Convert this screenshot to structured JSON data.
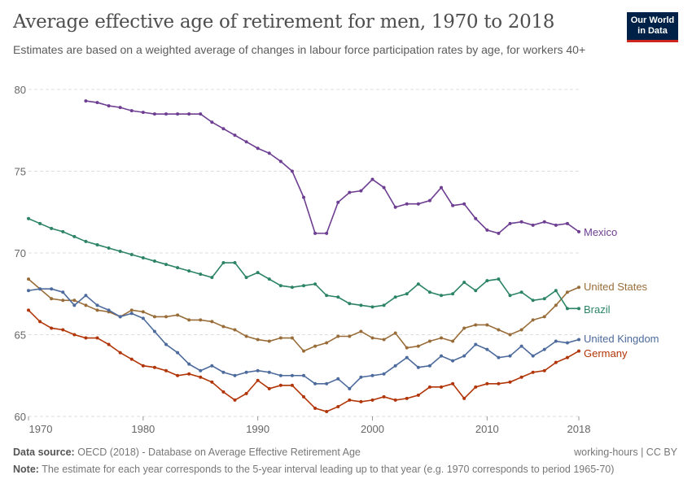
{
  "header": {
    "title": "Average effective age of retirement for men, 1970 to 2018",
    "subtitle": "Estimates are based on a weighted average of changes in labour force participation rates by age, for workers 40+",
    "logo_text": "Our World in Data"
  },
  "footer": {
    "source_label": "Data source:",
    "source_text": "OECD (2018) - Database on Average Effective Retirement Age",
    "license": "working-hours | CC BY",
    "note_label": "Note:",
    "note_text": "The estimate for each year corresponds to the 5-year interval leading up to that year (e.g. 1970 corresponds to period 1965-70)"
  },
  "chart_data": {
    "type": "line",
    "title": "Average effective age of retirement for men, 1970 to 2018",
    "xlim": [
      1970,
      2018
    ],
    "ylim": [
      60,
      80
    ],
    "x_ticks": [
      "1970",
      "1980",
      "1990",
      "2000",
      "2010",
      "2018"
    ],
    "y_ticks": [
      "60",
      "65",
      "70",
      "75",
      "80"
    ],
    "grid": "horizontal dashed",
    "legend": "line-end labels, right",
    "series": [
      {
        "name": "Mexico",
        "color": "#6d3e91",
        "start": 1975,
        "values": [
          79.3,
          79.2,
          79.0,
          78.9,
          78.7,
          78.6,
          78.5,
          78.5,
          78.5,
          78.5,
          78.5,
          78.0,
          77.6,
          77.2,
          76.8,
          76.4,
          76.1,
          75.6,
          75.0,
          73.4,
          71.2,
          71.2,
          73.1,
          73.7,
          73.8,
          74.5,
          74.0,
          72.8,
          73.0,
          73.0,
          73.2,
          74.0,
          72.9,
          73.0,
          72.1,
          71.4,
          71.2,
          71.8,
          71.9,
          71.7,
          71.9,
          71.7,
          71.8,
          71.3
        ]
      },
      {
        "name": "United States",
        "color": "#996d39",
        "start": 1970,
        "values": [
          68.4,
          67.8,
          67.2,
          67.1,
          67.1,
          66.8,
          66.5,
          66.4,
          66.1,
          66.5,
          66.4,
          66.1,
          66.1,
          66.2,
          65.9,
          65.9,
          65.8,
          65.5,
          65.3,
          64.9,
          64.7,
          64.6,
          64.8,
          64.8,
          64.0,
          64.3,
          64.5,
          64.9,
          64.9,
          65.2,
          64.8,
          64.7,
          65.1,
          64.2,
          64.3,
          64.6,
          64.8,
          64.6,
          65.4,
          65.6,
          65.6,
          65.3,
          65.0,
          65.3,
          65.9,
          66.1,
          66.8,
          67.6,
          67.9
        ]
      },
      {
        "name": "Brazil",
        "color": "#2c8465",
        "start": 1970,
        "values": [
          72.1,
          71.8,
          71.5,
          71.3,
          71.0,
          70.7,
          70.5,
          70.3,
          70.1,
          69.9,
          69.7,
          69.5,
          69.3,
          69.1,
          68.9,
          68.7,
          68.5,
          69.4,
          69.4,
          68.5,
          68.8,
          68.4,
          68.0,
          67.9,
          68.0,
          68.1,
          67.4,
          67.3,
          66.9,
          66.8,
          66.7,
          66.8,
          67.3,
          67.5,
          68.1,
          67.6,
          67.4,
          67.5,
          68.2,
          67.7,
          68.3,
          68.4,
          67.4,
          67.6,
          67.1,
          67.2,
          67.7,
          66.6,
          66.6
        ]
      },
      {
        "name": "United Kingdom",
        "color": "#4c6a9c",
        "start": 1970,
        "values": [
          67.7,
          67.8,
          67.8,
          67.6,
          66.8,
          67.4,
          66.8,
          66.5,
          66.1,
          66.3,
          66.0,
          65.2,
          64.4,
          63.9,
          63.2,
          62.8,
          63.1,
          62.7,
          62.5,
          62.7,
          62.8,
          62.7,
          62.5,
          62.5,
          62.5,
          62.0,
          62.0,
          62.3,
          61.7,
          62.4,
          62.5,
          62.6,
          63.1,
          63.6,
          63.0,
          63.1,
          63.7,
          63.4,
          63.7,
          64.4,
          64.1,
          63.6,
          63.7,
          64.3,
          63.7,
          64.1,
          64.6,
          64.5,
          64.7
        ]
      },
      {
        "name": "Germany",
        "color": "#b13507",
        "start": 1970,
        "values": [
          66.5,
          65.8,
          65.4,
          65.3,
          65.0,
          64.8,
          64.8,
          64.4,
          63.9,
          63.5,
          63.1,
          63.0,
          62.8,
          62.5,
          62.6,
          62.4,
          62.1,
          61.5,
          61.0,
          61.4,
          62.2,
          61.7,
          61.9,
          61.9,
          61.2,
          60.5,
          60.3,
          60.6,
          61.0,
          60.9,
          61.0,
          61.2,
          61.0,
          61.1,
          61.3,
          61.8,
          61.8,
          62.0,
          61.1,
          61.8,
          62.0,
          62.0,
          62.1,
          62.4,
          62.7,
          62.8,
          63.3,
          63.6,
          64.0
        ]
      }
    ]
  }
}
